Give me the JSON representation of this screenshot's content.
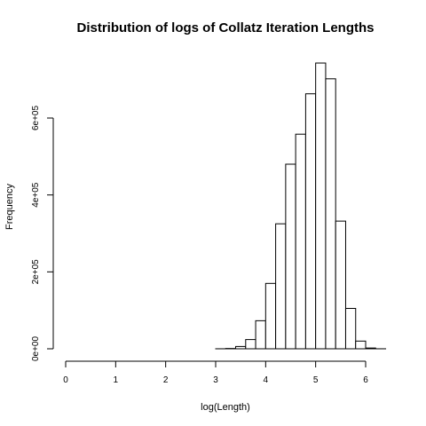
{
  "chart_data": {
    "type": "bar",
    "title": "Distribution of logs of Collatz Iteration Lengths",
    "xlabel": "log(Length)",
    "ylabel": "Frequency",
    "xlim": [
      0,
      6.4
    ],
    "ylim": [
      0,
      750000
    ],
    "x_ticks": [
      0,
      1,
      2,
      3,
      4,
      5,
      6
    ],
    "x_tick_labels": [
      "0",
      "1",
      "2",
      "3",
      "4",
      "5",
      "6"
    ],
    "y_ticks": [
      0,
      200000,
      400000,
      600000
    ],
    "y_tick_labels": [
      "0e+00",
      "2e+05",
      "4e+05",
      "6e+05"
    ],
    "bin_width": 0.2,
    "bins": [
      {
        "x0": 0.0,
        "x1": 0.2,
        "count": 1
      },
      {
        "x0": 0.2,
        "x1": 0.4,
        "count": 0
      },
      {
        "x0": 0.4,
        "x1": 0.6,
        "count": 0
      },
      {
        "x0": 0.6,
        "x1": 0.8,
        "count": 1
      },
      {
        "x0": 0.8,
        "x1": 1.0,
        "count": 0
      },
      {
        "x0": 1.0,
        "x1": 1.2,
        "count": 0
      },
      {
        "x0": 1.2,
        "x1": 1.4,
        "count": 0
      },
      {
        "x0": 1.4,
        "x1": 1.6,
        "count": 0
      },
      {
        "x0": 1.6,
        "x1": 1.8,
        "count": 1
      },
      {
        "x0": 1.8,
        "x1": 2.0,
        "count": 0
      },
      {
        "x0": 2.0,
        "x1": 2.2,
        "count": 1
      },
      {
        "x0": 2.2,
        "x1": 2.4,
        "count": 0
      },
      {
        "x0": 2.4,
        "x1": 2.6,
        "count": 0
      },
      {
        "x0": 2.6,
        "x1": 2.8,
        "count": 2
      },
      {
        "x0": 2.8,
        "x1": 3.0,
        "count": 5
      },
      {
        "x0": 3.0,
        "x1": 3.2,
        "count": 60
      },
      {
        "x0": 3.2,
        "x1": 3.4,
        "count": 800
      },
      {
        "x0": 3.4,
        "x1": 3.6,
        "count": 6000
      },
      {
        "x0": 3.6,
        "x1": 3.8,
        "count": 24000
      },
      {
        "x0": 3.8,
        "x1": 4.0,
        "count": 73000
      },
      {
        "x0": 4.0,
        "x1": 4.2,
        "count": 170000
      },
      {
        "x0": 4.2,
        "x1": 4.4,
        "count": 325000
      },
      {
        "x0": 4.4,
        "x1": 4.6,
        "count": 480000
      },
      {
        "x0": 4.6,
        "x1": 4.8,
        "count": 558000
      },
      {
        "x0": 4.8,
        "x1": 5.0,
        "count": 663000
      },
      {
        "x0": 5.0,
        "x1": 5.2,
        "count": 743000
      },
      {
        "x0": 5.2,
        "x1": 5.4,
        "count": 702000
      },
      {
        "x0": 5.4,
        "x1": 5.6,
        "count": 332000
      },
      {
        "x0": 5.6,
        "x1": 5.8,
        "count": 105000
      },
      {
        "x0": 5.8,
        "x1": 6.0,
        "count": 20000
      },
      {
        "x0": 6.0,
        "x1": 6.2,
        "count": 2000
      },
      {
        "x0": 6.2,
        "x1": 6.4,
        "count": 50
      }
    ]
  }
}
